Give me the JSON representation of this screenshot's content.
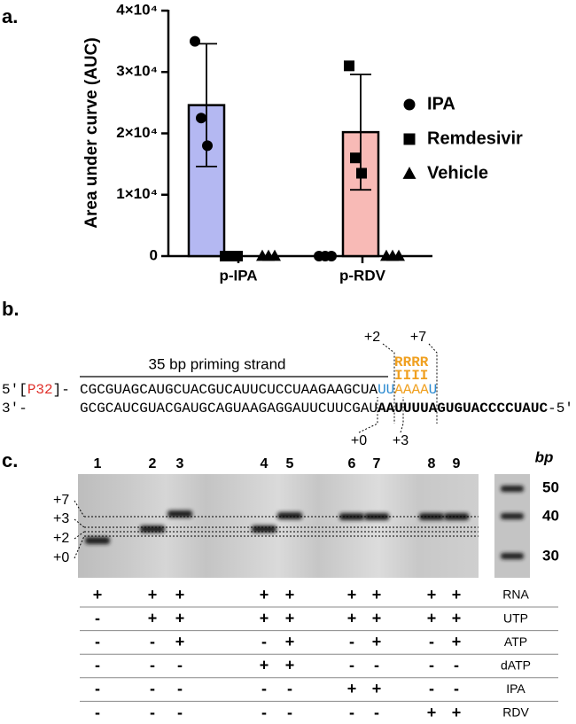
{
  "chart_data": {
    "type": "bar",
    "panel_label": "a.",
    "ylabel": "Area under curve (AUC)",
    "categories": [
      "p-IPA",
      "p-RDV"
    ],
    "series": [
      {
        "name": "IPA",
        "color": "#b4b8f2",
        "marker": "circle",
        "values": [
          24600,
          0
        ],
        "errors": [
          10000,
          0
        ],
        "points": [
          [
            35000,
            22500,
            18000
          ],
          [
            0,
            0,
            0
          ]
        ]
      },
      {
        "name": "Remdesivir",
        "color": "#f8bab6",
        "marker": "square",
        "values": [
          0,
          20200
        ],
        "errors": [
          0,
          9400
        ],
        "points": [
          [
            0,
            0,
            0
          ],
          [
            31000,
            16000,
            13500
          ]
        ]
      },
      {
        "name": "Vehicle",
        "color": "#dddddd",
        "marker": "triangle",
        "values": [
          0,
          0
        ],
        "errors": [
          0,
          0
        ],
        "points": [
          [
            0,
            0,
            0
          ],
          [
            0,
            0,
            0
          ]
        ]
      }
    ],
    "ylim": [
      0,
      40000
    ],
    "yticks": [
      0,
      {
        "value": 10000,
        "label": "1×10⁴"
      },
      {
        "value": 20000,
        "label": "2×10⁴"
      },
      {
        "value": 30000,
        "label": "3×10⁴"
      },
      {
        "value": 40000,
        "label": "4×10⁴"
      }
    ]
  },
  "panel_b": {
    "label": "b.",
    "strand_label": "35 bp priming strand",
    "top_strand": {
      "prefix_start": "5′[",
      "label32": "P32",
      "prefix_end": "]-",
      "sequence": "CGCGUAGCAUGCUACGUCAUUCUCCUAAGAAGCUA",
      "extension": [
        "UU",
        "AAAA",
        "U"
      ]
    },
    "analogs": [
      "RRRR",
      "IIII"
    ],
    "bottom_strand": {
      "prefix": "3′-",
      "sequence": "GCGCAUCGUACGAUGCAGUAAGAGGAUUCUUCGAU",
      "template": "AAUUUUAGUGUACCCCUAUC",
      "suffix": "-5′"
    },
    "positions": [
      "+2",
      "+7",
      "+0",
      "+3"
    ]
  },
  "panel_c": {
    "label": "c.",
    "lanes": [
      "1",
      "2",
      "3",
      "4",
      "5",
      "6",
      "7",
      "8",
      "9"
    ],
    "bp_label": "bp",
    "ladder": [
      "50",
      "40",
      "30"
    ],
    "band_labels": [
      "+7",
      "+3",
      "+2",
      "+0"
    ],
    "rows": [
      {
        "name": "RNA",
        "cells": [
          "+",
          "+",
          "+",
          "+",
          "+",
          "+",
          "+",
          "+",
          "+"
        ]
      },
      {
        "name": "UTP",
        "cells": [
          "-",
          "+",
          "+",
          "+",
          "+",
          "+",
          "+",
          "+",
          "+"
        ]
      },
      {
        "name": "ATP",
        "cells": [
          "-",
          "-",
          "+",
          "-",
          "+",
          "-",
          "+",
          "-",
          "+"
        ]
      },
      {
        "name": "dATP",
        "cells": [
          "-",
          "-",
          "-",
          "+",
          "+",
          "-",
          "-",
          "-",
          "-"
        ]
      },
      {
        "name": "IPA",
        "cells": [
          "-",
          "-",
          "-",
          "-",
          "-",
          "+",
          "+",
          "-",
          "-"
        ]
      },
      {
        "name": "RDV",
        "cells": [
          "-",
          "-",
          "-",
          "-",
          "-",
          "-",
          "-",
          "+",
          "+"
        ]
      }
    ]
  }
}
